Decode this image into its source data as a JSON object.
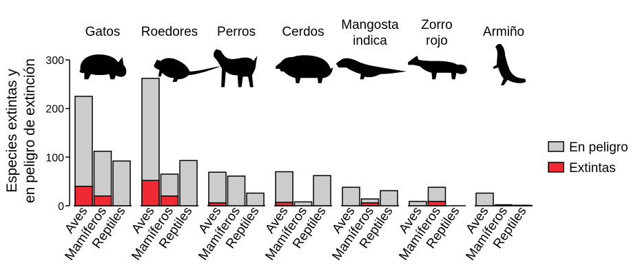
{
  "chart_data": {
    "type": "bar",
    "stacked": true,
    "ylabel_lines": [
      "Especies extintas y",
      "en peligro de extinción"
    ],
    "ylim": [
      0,
      300
    ],
    "yticks": [
      0,
      100,
      200,
      300
    ],
    "categories": [
      "Aves",
      "Mamíferos",
      "Reptiles"
    ],
    "groups": [
      {
        "name_lines": [
          "Gatos"
        ],
        "icon": "cat-silhouette-icon",
        "en_peligro_total": [
          225,
          112,
          92
        ],
        "extintas": [
          40,
          20,
          0
        ]
      },
      {
        "name_lines": [
          "Roedores"
        ],
        "icon": "rodent-silhouette-icon",
        "en_peligro_total": [
          262,
          65,
          93
        ],
        "extintas": [
          52,
          20,
          0
        ]
      },
      {
        "name_lines": [
          "Perros"
        ],
        "icon": "dog-silhouette-icon",
        "en_peligro_total": [
          69,
          61,
          26
        ],
        "extintas": [
          6,
          0,
          0
        ]
      },
      {
        "name_lines": [
          "Cerdos"
        ],
        "icon": "pig-silhouette-icon",
        "en_peligro_total": [
          70,
          8,
          62
        ],
        "extintas": [
          7,
          0,
          0
        ]
      },
      {
        "name_lines": [
          "Mangosta",
          "indica"
        ],
        "icon": "mongoose-silhouette-icon",
        "en_peligro_total": [
          38,
          14,
          31
        ],
        "extintas": [
          0,
          6,
          0
        ]
      },
      {
        "name_lines": [
          "Zorro",
          "rojo"
        ],
        "icon": "fox-silhouette-icon",
        "en_peligro_total": [
          9,
          38,
          0
        ],
        "extintas": [
          0,
          9,
          0
        ]
      },
      {
        "name_lines": [
          "Armiño"
        ],
        "icon": "stoat-silhouette-icon",
        "en_peligro_total": [
          26,
          2,
          1
        ],
        "extintas": [
          0,
          0,
          0
        ]
      }
    ],
    "series": [
      {
        "name": "En peligro",
        "color": "#cccccc"
      },
      {
        "name": "Extintas",
        "color": "#ef2a35"
      }
    ],
    "legend_position": "right",
    "grid": false
  }
}
